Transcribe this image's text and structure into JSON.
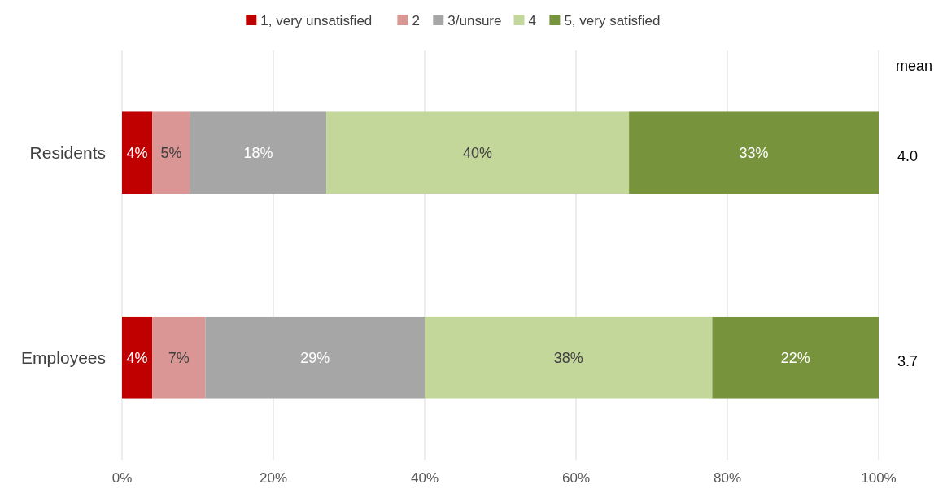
{
  "chart_data": {
    "type": "bar",
    "orientation": "horizontal",
    "stacked": true,
    "categories": [
      "Residents",
      "Employees"
    ],
    "series": [
      {
        "name": "1, very unsatisfied",
        "color": "#c00000",
        "values": [
          4,
          4
        ],
        "value_labels": [
          "4%",
          "4%"
        ]
      },
      {
        "name": "2",
        "color": "#da9694",
        "values": [
          5,
          7
        ],
        "value_labels": [
          "5%",
          "7%"
        ]
      },
      {
        "name": "3/unsure",
        "color": "#a6a6a6",
        "values": [
          18,
          29
        ],
        "value_labels": [
          "18%",
          "29%"
        ]
      },
      {
        "name": "4",
        "color": "#c4d79b",
        "values": [
          40,
          38
        ],
        "value_labels": [
          "40%",
          "38%"
        ]
      },
      {
        "name": "5, very satisfied",
        "color": "#77933c",
        "values": [
          33,
          22
        ],
        "value_labels": [
          "33%",
          "22%"
        ]
      }
    ],
    "xlim": [
      0,
      100
    ],
    "xticks": [
      {
        "value": 0,
        "label": "0%"
      },
      {
        "value": 20,
        "label": "20%"
      },
      {
        "value": 40,
        "label": "40%"
      },
      {
        "value": 60,
        "label": "60%"
      },
      {
        "value": 80,
        "label": "80%"
      },
      {
        "value": 100,
        "label": "100%"
      }
    ],
    "grid": "x",
    "legend": "top",
    "annotations": [
      "mean",
      "4.0",
      "3.7"
    ]
  }
}
